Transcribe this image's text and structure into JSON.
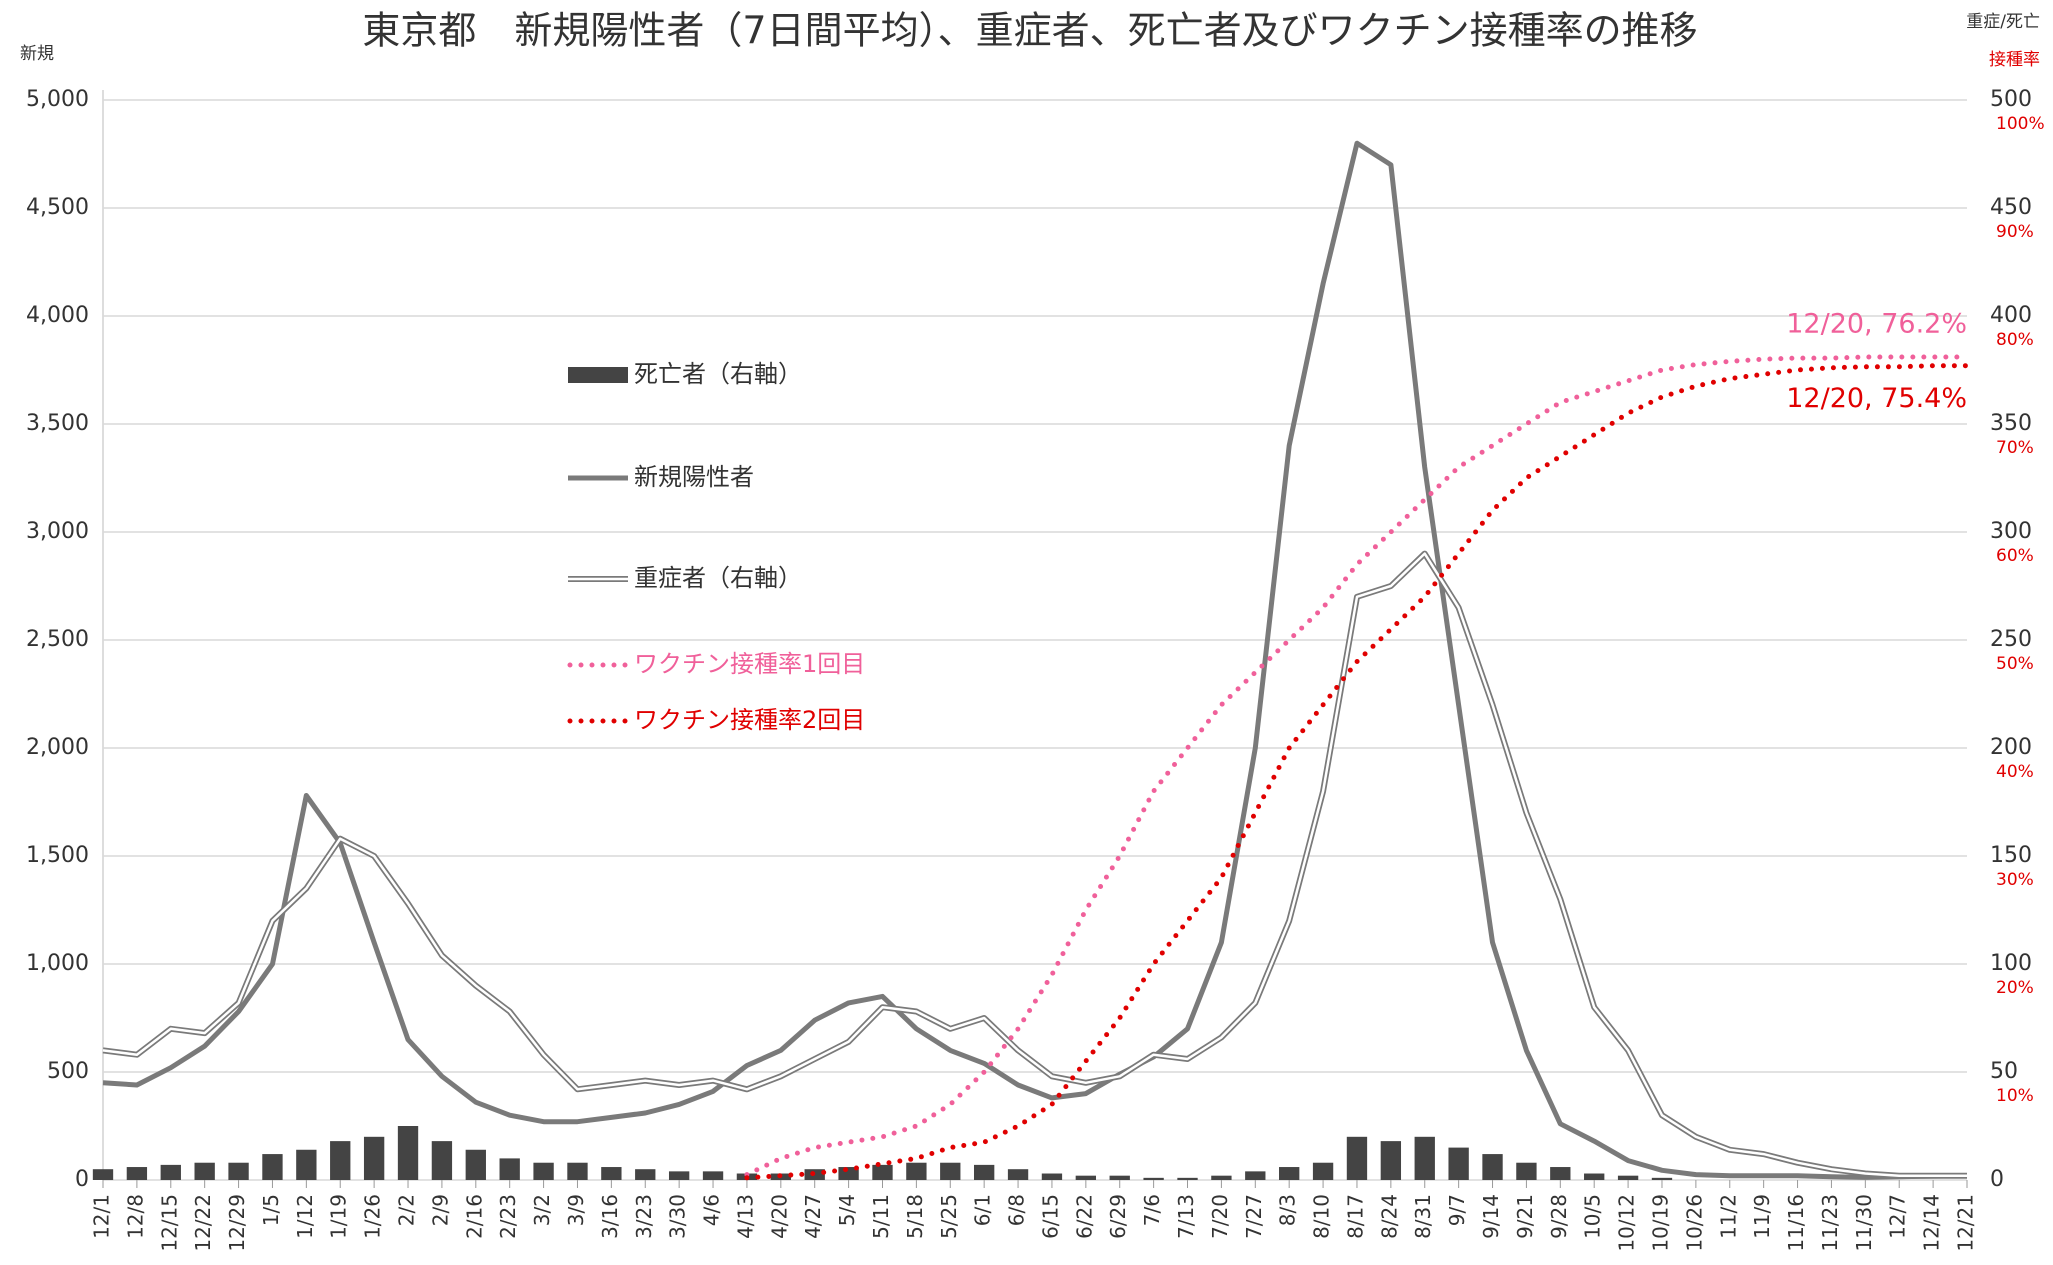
{
  "chart_data": {
    "type": "line",
    "title": "東京都　新規陽性者（7日間平均）、重症者、死亡者及びワクチン接種率の推移",
    "y_label": "新規",
    "y2_label": "重症/死亡",
    "y3_label": "接種率",
    "categories": [
      "12/1",
      "12/8",
      "12/15",
      "12/22",
      "12/29",
      "1/5",
      "1/12",
      "1/19",
      "1/26",
      "2/2",
      "2/9",
      "2/16",
      "2/23",
      "3/2",
      "3/9",
      "3/16",
      "3/23",
      "3/30",
      "4/6",
      "4/13",
      "4/20",
      "4/27",
      "5/4",
      "5/11",
      "5/18",
      "5/25",
      "6/1",
      "6/8",
      "6/15",
      "6/22",
      "6/29",
      "7/6",
      "7/13",
      "7/20",
      "7/27",
      "8/3",
      "8/10",
      "8/17",
      "8/24",
      "8/31",
      "9/7",
      "9/14",
      "9/21",
      "9/28",
      "10/5",
      "10/12",
      "10/19",
      "10/26",
      "11/2",
      "11/9",
      "11/16",
      "11/23",
      "11/30",
      "12/7",
      "12/14",
      "12/21"
    ],
    "ylim": [
      0,
      5000
    ],
    "yticks": [
      0,
      500,
      {
        "value": 1000,
        "label": "1,000"
      },
      {
        "value": 1500,
        "label": "1,500"
      },
      {
        "value": 2000,
        "label": "2,000"
      },
      {
        "value": 2500,
        "label": "2,500"
      },
      {
        "value": 3000,
        "label": "3,000"
      },
      {
        "value": 3500,
        "label": "3,500"
      },
      {
        "value": 4000,
        "label": "4,000"
      },
      {
        "value": 4500,
        "label": "4,500"
      },
      {
        "value": 5000,
        "label": "5,000"
      }
    ],
    "y2lim": [
      0,
      500
    ],
    "y2ticks": [
      0,
      50,
      100,
      150,
      200,
      250,
      300,
      350,
      400,
      450,
      500
    ],
    "y3lim": [
      0,
      100
    ],
    "y3ticks": [
      {
        "value": 10,
        "label": "10%"
      },
      {
        "value": 20,
        "label": "20%"
      },
      {
        "value": 30,
        "label": "30%"
      },
      {
        "value": 40,
        "label": "40%"
      },
      {
        "value": 50,
        "label": "50%"
      },
      {
        "value": 60,
        "label": "60%"
      },
      {
        "value": 70,
        "label": "70%"
      },
      {
        "value": 80,
        "label": "80%"
      },
      {
        "value": 90,
        "label": "90%"
      },
      {
        "value": 100,
        "label": "100%"
      }
    ],
    "grid": true,
    "series": [
      {
        "name": "死亡者（右軸）",
        "kind": "bar",
        "axis": "y2",
        "color": "#444444",
        "values": [
          5,
          6,
          7,
          8,
          8,
          12,
          14,
          18,
          20,
          25,
          18,
          14,
          10,
          8,
          8,
          6,
          5,
          4,
          4,
          3,
          3,
          5,
          6,
          7,
          8,
          8,
          7,
          5,
          3,
          2,
          2,
          1,
          1,
          2,
          4,
          6,
          8,
          20,
          18,
          20,
          15,
          12,
          8,
          6,
          3,
          2,
          1,
          0,
          0,
          0,
          0,
          0,
          0,
          0,
          0,
          0
        ]
      },
      {
        "name": "新規陽性者",
        "kind": "line",
        "axis": "y",
        "color": "#7a7a7a",
        "values": [
          450,
          440,
          520,
          620,
          780,
          1000,
          1780,
          1560,
          1100,
          650,
          480,
          360,
          300,
          270,
          270,
          290,
          310,
          350,
          410,
          530,
          600,
          740,
          820,
          850,
          700,
          600,
          540,
          440,
          380,
          400,
          490,
          570,
          700,
          1100,
          2000,
          3400,
          4150,
          4800,
          4700,
          3300,
          2200,
          1100,
          600,
          260,
          180,
          90,
          45,
          25,
          20,
          20,
          20,
          15,
          12,
          15,
          18,
          20
        ]
      },
      {
        "name": "重症者（右軸）",
        "kind": "double",
        "axis": "y2",
        "color": "#7a7a7a",
        "values": [
          60,
          58,
          70,
          68,
          82,
          120,
          135,
          158,
          150,
          128,
          104,
          90,
          78,
          58,
          42,
          44,
          46,
          44,
          46,
          42,
          48,
          56,
          64,
          80,
          78,
          70,
          75,
          60,
          48,
          45,
          48,
          58,
          56,
          66,
          82,
          120,
          180,
          270,
          275,
          290,
          265,
          220,
          170,
          130,
          80,
          60,
          30,
          20,
          14,
          12,
          8,
          5,
          3,
          2,
          2,
          2
        ]
      },
      {
        "name": "ワクチン接種率1回目",
        "kind": "dotted",
        "axis": "y3",
        "color": "#f0609a",
        "values": [
          null,
          null,
          null,
          null,
          null,
          null,
          null,
          null,
          null,
          null,
          null,
          null,
          null,
          null,
          null,
          null,
          null,
          null,
          null,
          0.5,
          2,
          3,
          3.5,
          4,
          5,
          7,
          10,
          14,
          19,
          25,
          30,
          36,
          40,
          44,
          47,
          50,
          53,
          57,
          60,
          63,
          66,
          68,
          70,
          72,
          73,
          74,
          75,
          75.5,
          75.8,
          76,
          76.1,
          76.1,
          76.2,
          76.2,
          76.2,
          76.2
        ]
      },
      {
        "name": "ワクチン接種率2回目",
        "kind": "dotted",
        "axis": "y3",
        "color": "#e00000",
        "values": [
          null,
          null,
          null,
          null,
          null,
          null,
          null,
          null,
          null,
          null,
          null,
          null,
          null,
          null,
          null,
          null,
          null,
          null,
          null,
          0.2,
          0.4,
          0.6,
          1,
          1.5,
          2,
          3,
          3.5,
          5,
          7,
          11,
          15,
          20,
          24,
          28,
          34,
          40,
          44,
          48,
          51,
          54,
          58,
          62,
          65,
          67,
          69,
          71,
          72.5,
          73.5,
          74.2,
          74.6,
          75,
          75.2,
          75.3,
          75.3,
          75.4,
          75.4
        ]
      }
    ],
    "annotations": [
      {
        "text": "12/20, 76.2%",
        "series": 3,
        "color": "#f0609a"
      },
      {
        "text": "12/20, 75.4%",
        "series": 4,
        "color": "#e00000"
      }
    ]
  }
}
